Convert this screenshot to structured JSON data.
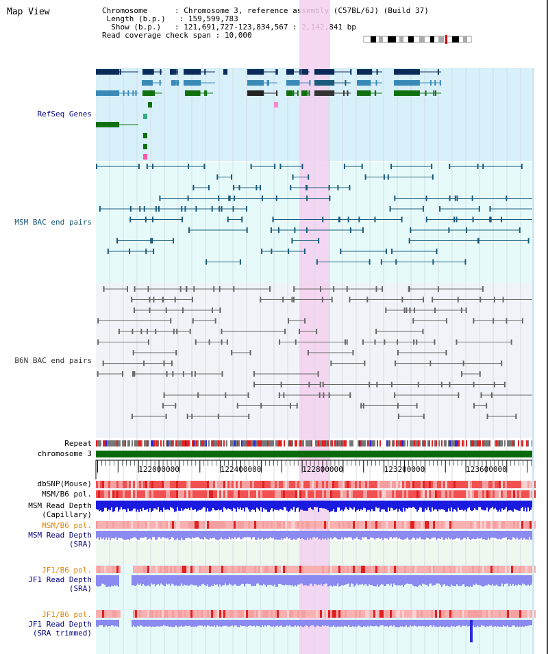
{
  "header": {
    "title": "Map View",
    "chromosome_label": "Chromosome",
    "chromosome_value": "Chromosome 3, reference assembly (C57BL/6J) (Build 37)",
    "length_label": "Length (b.p.)",
    "length_value": "159,599,783",
    "show_label": "Show (b.p.)",
    "show_value": "121,691,727-123,834,567 : 2,142,841 bp",
    "coverage_label": "Read coverage check span",
    "coverage_value": "10,000"
  },
  "tracks": {
    "refseq": "RefSeq Genes",
    "msm_bac": "MSM BAC end pairs",
    "b6n_bac": "B6N BAC end pairs",
    "repeat": "Repeat",
    "chromosome": "chromosome 3",
    "dbsnp": "dbSNP(Mouse)",
    "msm_b6_pol_1": "MSM/B6 pol.",
    "msm_depth_cap_1": "MSM Read Depth",
    "msm_depth_cap_2": "(Capillary)",
    "msm_b6_pol_2": "MSM/B6 pol.",
    "msm_depth_sra_1": "MSM Read Depth",
    "msm_depth_sra_2": "(SRA)",
    "jf1_pol_1": "JF1/B6 pol.",
    "jf1_depth_sra_1": "JF1 Read Depth",
    "jf1_depth_sra_2": "(SRA)",
    "jf1_pol_2": "JF1/B6 pol.",
    "jf1_depth_trim_1": "JF1 Read Depth",
    "jf1_depth_trim_2": "(SRA trimmed)"
  },
  "axis": {
    "ticks": [
      "122000000",
      "122400000",
      "122800000",
      "123200000",
      "123600000"
    ],
    "range_start": 121691727,
    "range_end": 123834567
  },
  "colors": {
    "refseq_bg": "#d8f0fa",
    "msm_bg": "#e6fafa",
    "b6n_bg": "#f0f4f8",
    "highlight": "#f5d0f0",
    "gene_dark": "#0a2a5a",
    "gene_teal": "#3a8ab8",
    "gene_green": "#107010",
    "bac_msm": "#1a5a7a",
    "bac_b6n": "#666666",
    "chromosome": "#0a6a0a",
    "pol_red": "#f05050",
    "depth_blue": "#1a1ae0",
    "depth_light": "#8a8af0",
    "label_blue": "#000080",
    "label_orange": "#e08000"
  }
}
